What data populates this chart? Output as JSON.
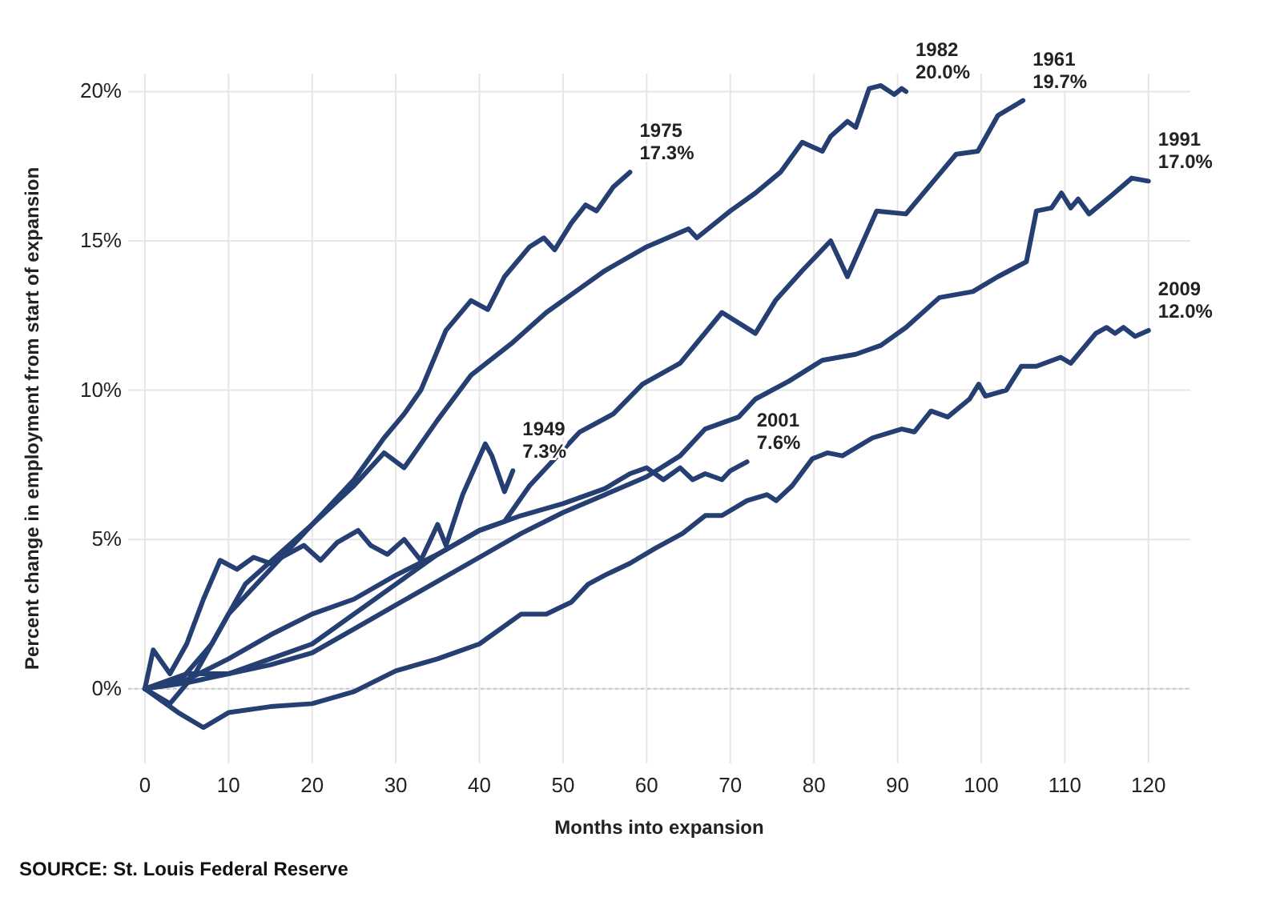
{
  "chart_data": {
    "type": "line",
    "xlabel": "Months into expansion",
    "ylabel": "Percent change in employment from start of expansion",
    "annotations": [
      "SOURCE: St. Louis Federal Reserve"
    ],
    "xlim": [
      -2,
      125
    ],
    "ylim": [
      -2.5,
      20.6
    ],
    "xticks": [
      0,
      10,
      20,
      30,
      40,
      50,
      60,
      70,
      80,
      90,
      100,
      110,
      120
    ],
    "yticks": [
      {
        "value": 0,
        "label": "0%"
      },
      {
        "value": 5,
        "label": "5%"
      },
      {
        "value": 10,
        "label": "10%"
      },
      {
        "value": 15,
        "label": "15%"
      },
      {
        "value": 20,
        "label": "20%"
      }
    ],
    "grid": true,
    "marker": "none",
    "line_style": "solid",
    "ref_lines": [
      {
        "axis": "y",
        "value": 0,
        "color": "#c8c8c8",
        "line_style": "dotted"
      }
    ],
    "series": [
      {
        "name": "1975",
        "color": "#253f73",
        "x": [
          0,
          3,
          6,
          10,
          15,
          20,
          25,
          28.6,
          31,
          33,
          36,
          39,
          41,
          43,
          46,
          47.7,
          49,
          51,
          52.7,
          54,
          56,
          58
        ],
        "values": [
          0,
          -0.5,
          0.5,
          2.5,
          4,
          5.5,
          7,
          8.4,
          9.2,
          10,
          12,
          13,
          12.7,
          13.8,
          14.8,
          15.1,
          14.7,
          15.6,
          16.2,
          16.0,
          16.8,
          17.3
        ],
        "value_labels": [
          null,
          null,
          null,
          null,
          null,
          null,
          null,
          null,
          null,
          null,
          null,
          null,
          null,
          null,
          null,
          null,
          null,
          null,
          null,
          null,
          null,
          "17.3%"
        ]
      },
      {
        "name": "1982",
        "color": "#253f73",
        "x": [
          0,
          4,
          8,
          12,
          16,
          20,
          25,
          28.6,
          31,
          35,
          39,
          44,
          48,
          52,
          55,
          60,
          65,
          66,
          70,
          73,
          76,
          78.6,
          81,
          82,
          84,
          85,
          86.6,
          88,
          89.6,
          90.5,
          91
        ],
        "values": [
          0,
          0.2,
          1.5,
          3.5,
          4.5,
          5.5,
          6.8,
          7.9,
          7.4,
          9,
          10.5,
          11.6,
          12.6,
          13.4,
          14.0,
          14.8,
          15.4,
          15.1,
          16.0,
          16.6,
          17.3,
          18.3,
          18.0,
          18.5,
          19.0,
          18.8,
          20.1,
          20.2,
          19.9,
          20.1,
          20.0
        ],
        "value_labels": [
          null,
          null,
          null,
          null,
          null,
          null,
          null,
          null,
          null,
          null,
          null,
          null,
          null,
          null,
          null,
          null,
          null,
          null,
          null,
          null,
          null,
          null,
          null,
          null,
          null,
          null,
          null,
          null,
          null,
          null,
          "20.0%"
        ]
      },
      {
        "name": "1961",
        "color": "#253f73",
        "x": [
          0,
          5,
          10,
          15,
          20,
          25,
          30,
          35,
          40,
          43,
          46,
          52,
          56,
          59.5,
          64,
          69,
          73,
          75.4,
          78.6,
          82,
          84,
          87.5,
          91,
          94.6,
          97,
          99.6,
          102,
          105
        ],
        "values": [
          0,
          0.5,
          0.5,
          1,
          1.5,
          2.5,
          3.5,
          4.5,
          5.3,
          5.6,
          6.8,
          8.6,
          9.2,
          10.2,
          10.9,
          12.6,
          11.9,
          13,
          14.0,
          15.0,
          13.8,
          16.0,
          15.9,
          17.1,
          17.9,
          18.0,
          19.2,
          19.7
        ],
        "value_labels": [
          null,
          null,
          null,
          null,
          null,
          null,
          null,
          null,
          null,
          null,
          null,
          null,
          null,
          null,
          null,
          null,
          null,
          null,
          null,
          null,
          null,
          null,
          null,
          null,
          null,
          null,
          null,
          "19.7%"
        ]
      },
      {
        "name": "1991",
        "color": "#253f73",
        "x": [
          0,
          5,
          10,
          15,
          20,
          25,
          30,
          35,
          40,
          45,
          50,
          55,
          60,
          64,
          67,
          71,
          73,
          77,
          81,
          85,
          88,
          91,
          95,
          99,
          102,
          105.4,
          106.6,
          108.4,
          109.6,
          110.7,
          111.6,
          112.9,
          115.5,
          118,
          120
        ],
        "values": [
          0,
          0.2,
          0.5,
          0.8,
          1.2,
          2,
          2.8,
          3.6,
          4.4,
          5.2,
          5.9,
          6.5,
          7.1,
          7.8,
          8.7,
          9.1,
          9.7,
          10.3,
          11.0,
          11.2,
          11.5,
          12.1,
          13.1,
          13.3,
          13.8,
          14.3,
          16.0,
          16.1,
          16.6,
          16.1,
          16.4,
          15.9,
          16.5,
          17.1,
          17.0
        ],
        "value_labels": [
          null,
          null,
          null,
          null,
          null,
          null,
          null,
          null,
          null,
          null,
          null,
          null,
          null,
          null,
          null,
          null,
          null,
          null,
          null,
          null,
          null,
          null,
          null,
          null,
          null,
          null,
          null,
          null,
          null,
          null,
          null,
          null,
          null,
          null,
          "17.0%"
        ]
      },
      {
        "name": "2009",
        "color": "#253f73",
        "x": [
          0,
          4,
          7,
          10,
          15,
          20,
          25,
          30,
          35,
          40,
          45,
          48,
          51,
          53,
          55,
          58,
          61,
          64.3,
          67,
          69,
          72,
          74.4,
          75.5,
          77.4,
          79.8,
          81.6,
          83.4,
          87,
          90.5,
          92,
          94,
          96,
          98.6,
          99.7,
          100.5,
          103,
          104.8,
          106.6,
          109.5,
          110.7,
          113.7,
          115,
          116,
          117,
          118.4,
          120
        ],
        "values": [
          0,
          -0.8,
          -1.3,
          -0.8,
          -0.6,
          -0.5,
          -0.1,
          0.6,
          1.0,
          1.5,
          2.5,
          2.5,
          2.9,
          3.5,
          3.8,
          4.2,
          4.7,
          5.2,
          5.8,
          5.8,
          6.3,
          6.5,
          6.3,
          6.8,
          7.7,
          7.9,
          7.8,
          8.4,
          8.7,
          8.6,
          9.3,
          9.1,
          9.7,
          10.2,
          9.8,
          10.0,
          10.8,
          10.8,
          11.1,
          10.9,
          11.9,
          12.1,
          11.9,
          12.1,
          11.8,
          12.0
        ],
        "value_labels": [
          null,
          null,
          null,
          null,
          null,
          null,
          null,
          null,
          null,
          null,
          null,
          null,
          null,
          null,
          null,
          null,
          null,
          null,
          null,
          null,
          null,
          null,
          null,
          null,
          null,
          null,
          null,
          null,
          null,
          null,
          null,
          null,
          null,
          null,
          null,
          null,
          null,
          null,
          null,
          null,
          null,
          null,
          null,
          null,
          null,
          "12.0%"
        ]
      },
      {
        "name": "1949",
        "color": "#253f73",
        "x": [
          0,
          1,
          3,
          5,
          7,
          9,
          11,
          13,
          15,
          17,
          19,
          21,
          23,
          25.5,
          27,
          29,
          31,
          33,
          35,
          36,
          38,
          40.7,
          41.5,
          43,
          44
        ],
        "values": [
          0,
          1.3,
          0.5,
          1.5,
          3,
          4.3,
          4.0,
          4.4,
          4.2,
          4.5,
          4.8,
          4.3,
          4.9,
          5.3,
          4.8,
          4.5,
          5.0,
          4.3,
          5.5,
          4.8,
          6.5,
          8.2,
          7.8,
          6.6,
          7.3
        ],
        "value_labels": [
          null,
          null,
          null,
          null,
          null,
          null,
          null,
          null,
          null,
          null,
          null,
          null,
          null,
          null,
          null,
          null,
          null,
          null,
          null,
          null,
          null,
          null,
          null,
          null,
          "7.3%"
        ]
      },
      {
        "name": "2001",
        "color": "#253f73",
        "x": [
          0,
          5,
          10,
          15,
          20,
          25,
          30,
          35,
          40,
          45,
          50,
          55,
          58,
          60,
          62,
          64,
          65.5,
          67,
          69,
          70,
          72
        ],
        "values": [
          0,
          0.3,
          1,
          1.8,
          2.5,
          3,
          3.8,
          4.5,
          5.3,
          5.8,
          6.2,
          6.7,
          7.2,
          7.4,
          7.0,
          7.4,
          7.0,
          7.2,
          7.0,
          7.3,
          7.6
        ],
        "value_labels": [
          null,
          null,
          null,
          null,
          null,
          null,
          null,
          null,
          null,
          null,
          null,
          null,
          null,
          null,
          null,
          null,
          null,
          null,
          null,
          null,
          "7.6%"
        ]
      }
    ]
  }
}
